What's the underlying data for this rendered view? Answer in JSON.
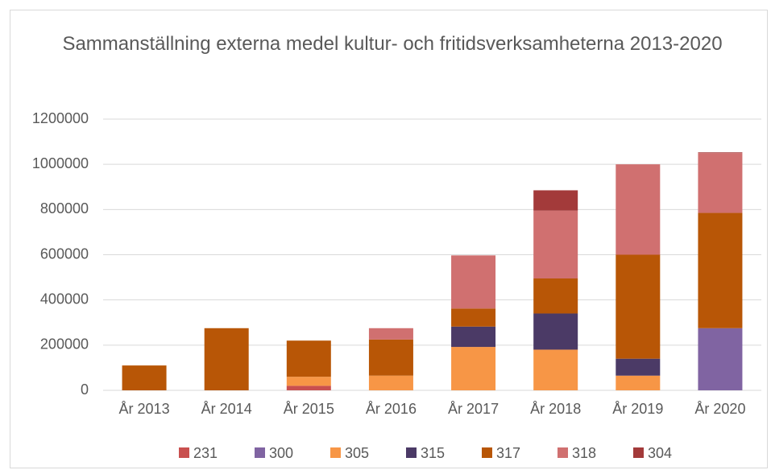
{
  "chart_data": {
    "type": "stacked_bar",
    "title": "Sammanställning externa medel kultur- och fritidsverksamheterna 2013-2020",
    "categories": [
      "År 2013",
      "År 2014",
      "År 2015",
      "År 2016",
      "År 2017",
      "År 2018",
      "År 2019",
      "År 2020"
    ],
    "series": [
      {
        "name": "231",
        "color": "#c9504f",
        "values": [
          null,
          null,
          20000,
          null,
          null,
          null,
          null,
          null
        ]
      },
      {
        "name": "300",
        "color": "#8064a2",
        "values": [
          null,
          null,
          null,
          null,
          null,
          null,
          null,
          275000
        ]
      },
      {
        "name": "305",
        "color": "#f79646",
        "values": [
          null,
          null,
          40000,
          65000,
          192000,
          180000,
          65000,
          null
        ]
      },
      {
        "name": "315",
        "color": "#4b3a66",
        "values": [
          null,
          null,
          null,
          null,
          90000,
          160000,
          75000,
          null
        ]
      },
      {
        "name": "317",
        "color": "#b85606",
        "values": [
          110000,
          275000,
          160000,
          160000,
          80000,
          155000,
          460000,
          510000
        ]
      },
      {
        "name": "318",
        "color": "#d07070",
        "values": [
          null,
          null,
          null,
          50000,
          235000,
          300000,
          400000,
          265000
        ]
      },
      {
        "name": "304",
        "color": "#a33a3a",
        "values": [
          null,
          null,
          null,
          null,
          null,
          90000,
          null,
          3000
        ]
      }
    ],
    "ylim": [
      0,
      1200000
    ],
    "yticks": [
      0,
      200000,
      400000,
      600000,
      800000,
      1000000,
      1200000
    ],
    "grid": true,
    "legend": "bottom"
  }
}
